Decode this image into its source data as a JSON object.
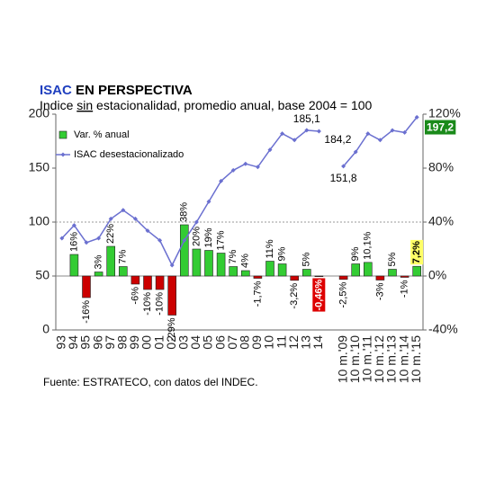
{
  "chart_data": {
    "type": "bar_line",
    "title": [
      "ISAC",
      " EN PERSPECTIVA"
    ],
    "subtitle": [
      "Indice ",
      "sin",
      " estacionalidad, promedio anual, base 2004 = 100"
    ],
    "source": "Fuente: ESTRATECO, con datos del INDEC.",
    "categories": [
      "93",
      "94",
      "95",
      "96",
      "97",
      "98",
      "99",
      "00",
      "01",
      "02",
      "03",
      "04",
      "05",
      "06",
      "07",
      "08",
      "09",
      "10",
      "11",
      "12",
      "13",
      "14",
      null,
      "10 m.'09",
      "10 m.'10",
      "10 m.'11",
      "10 m.'12",
      "10 m.'13",
      "10 m.'14",
      "10 m.'15"
    ],
    "ylim": [
      0,
      200
    ],
    "yticks": [
      0,
      50,
      100,
      150,
      200
    ],
    "y2lim": [
      -40,
      120
    ],
    "y2ticks": [
      {
        "value": -40,
        "label": "-40%"
      },
      {
        "value": 0,
        "label": "0%"
      },
      {
        "value": 40,
        "label": "40%"
      },
      {
        "value": 80,
        "label": "80%"
      },
      {
        "value": 120,
        "label": "120%"
      }
    ],
    "reference_line": 100,
    "legend": "upper left",
    "series": [
      {
        "name": "Var. % anual",
        "type": "bar",
        "axis": "y2",
        "color": "#33cc33",
        "negative_color": "#cc0000",
        "values": [
          null,
          16,
          -16,
          3,
          22,
          7,
          -6,
          -10,
          -10,
          -29,
          38,
          20,
          19,
          17,
          7,
          4,
          -1.7,
          11,
          9,
          -3.2,
          5,
          -0.46,
          null,
          -2.5,
          9,
          10.1,
          -3,
          5,
          -1,
          7.2
        ],
        "value_labels": [
          null,
          "16%",
          "-16%",
          "3%",
          "22%",
          "7%",
          "-6%",
          "-10%",
          "-10%",
          "-29%",
          "38%",
          "20%",
          "19%",
          "17%",
          "7%",
          "4%",
          "-1,7%",
          "11%",
          "9%",
          "-3,2%",
          "5%",
          "-0,46%",
          null,
          "-2,5%",
          "9%",
          "10,1%",
          "-3%",
          "5%",
          "-1%",
          "7,2%"
        ],
        "label_box_colors": [
          null,
          null,
          null,
          null,
          null,
          null,
          null,
          null,
          null,
          null,
          null,
          null,
          null,
          null,
          null,
          null,
          null,
          null,
          null,
          null,
          null,
          "#dd0000",
          null,
          null,
          null,
          null,
          null,
          null,
          null,
          "#ffff66"
        ]
      },
      {
        "name": "ISAC desestacionalizado",
        "type": "line",
        "color": "#6b70d0",
        "values": [
          85,
          97,
          81,
          85,
          103,
          111,
          103,
          92,
          83,
          60,
          83,
          100,
          119,
          138,
          148,
          154,
          151,
          167,
          182,
          176,
          185.1,
          184.2,
          null,
          151.8,
          165,
          182,
          176,
          185,
          183,
          197.2
        ],
        "value_labels": [
          null,
          null,
          null,
          null,
          null,
          null,
          null,
          null,
          null,
          null,
          null,
          null,
          null,
          null,
          null,
          null,
          null,
          null,
          null,
          null,
          "185,1",
          "184,2",
          null,
          "151,8",
          null,
          null,
          null,
          null,
          null,
          "197,2"
        ],
        "label_box_colors": [
          null,
          null,
          null,
          null,
          null,
          null,
          null,
          null,
          null,
          null,
          null,
          null,
          null,
          null,
          null,
          null,
          null,
          null,
          null,
          null,
          null,
          null,
          null,
          null,
          null,
          null,
          null,
          null,
          null,
          "#1a8a1a"
        ]
      }
    ]
  }
}
